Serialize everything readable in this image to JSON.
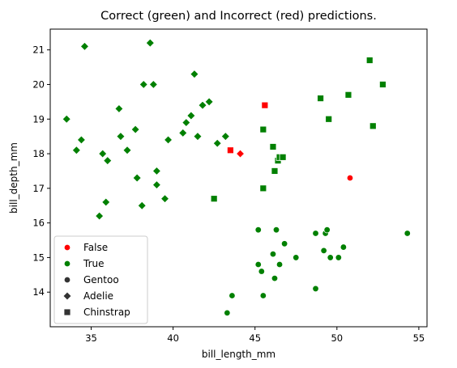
{
  "chart_data": {
    "type": "scatter",
    "title": "Correct (green) and Incorrect (red) predictions.",
    "xlabel": "bill_length_mm",
    "ylabel": "bill_depth_mm",
    "xlim": [
      32.5,
      55.5
    ],
    "ylim": [
      13.0,
      21.6
    ],
    "xticks": [
      35,
      40,
      45,
      50,
      55
    ],
    "yticks": [
      14,
      15,
      16,
      17,
      18,
      19,
      20,
      21
    ],
    "grid": false,
    "legend": {
      "placement": "lower-left",
      "entries": [
        {
          "label": "False",
          "marker": "circle",
          "color": "#ff0000"
        },
        {
          "label": "True",
          "marker": "circle",
          "color": "#008000"
        },
        {
          "label": "Gentoo",
          "marker": "circle",
          "color": "#333333"
        },
        {
          "label": "Adelie",
          "marker": "diamond",
          "color": "#333333"
        },
        {
          "label": "Chinstrap",
          "marker": "square",
          "color": "#333333"
        }
      ]
    },
    "colors": {
      "True": "#008000",
      "False": "#ff0000"
    },
    "points": [
      {
        "x": 34.6,
        "y": 21.1,
        "species": "Adelie",
        "correct": true
      },
      {
        "x": 38.6,
        "y": 21.2,
        "species": "Adelie",
        "correct": true
      },
      {
        "x": 38.2,
        "y": 20.0,
        "species": "Adelie",
        "correct": true
      },
      {
        "x": 38.8,
        "y": 20.0,
        "species": "Adelie",
        "correct": true
      },
      {
        "x": 41.3,
        "y": 20.3,
        "species": "Adelie",
        "correct": true
      },
      {
        "x": 33.5,
        "y": 19.0,
        "species": "Adelie",
        "correct": true
      },
      {
        "x": 34.4,
        "y": 18.4,
        "species": "Adelie",
        "correct": true
      },
      {
        "x": 34.1,
        "y": 18.1,
        "species": "Adelie",
        "correct": true
      },
      {
        "x": 36.7,
        "y": 19.3,
        "species": "Adelie",
        "correct": true
      },
      {
        "x": 36.8,
        "y": 18.5,
        "species": "Adelie",
        "correct": true
      },
      {
        "x": 37.7,
        "y": 18.7,
        "species": "Adelie",
        "correct": true
      },
      {
        "x": 35.7,
        "y": 18.0,
        "species": "Adelie",
        "correct": true
      },
      {
        "x": 36.0,
        "y": 17.8,
        "species": "Adelie",
        "correct": true
      },
      {
        "x": 37.2,
        "y": 18.1,
        "species": "Adelie",
        "correct": true
      },
      {
        "x": 39.7,
        "y": 18.4,
        "species": "Adelie",
        "correct": true
      },
      {
        "x": 41.1,
        "y": 19.1,
        "species": "Adelie",
        "correct": true
      },
      {
        "x": 40.8,
        "y": 18.9,
        "species": "Adelie",
        "correct": true
      },
      {
        "x": 41.8,
        "y": 19.4,
        "species": "Adelie",
        "correct": true
      },
      {
        "x": 42.2,
        "y": 19.5,
        "species": "Adelie",
        "correct": true
      },
      {
        "x": 40.6,
        "y": 18.6,
        "species": "Adelie",
        "correct": true
      },
      {
        "x": 41.5,
        "y": 18.5,
        "species": "Adelie",
        "correct": true
      },
      {
        "x": 42.7,
        "y": 18.3,
        "species": "Adelie",
        "correct": true
      },
      {
        "x": 43.2,
        "y": 18.5,
        "species": "Adelie",
        "correct": true
      },
      {
        "x": 37.8,
        "y": 17.3,
        "species": "Adelie",
        "correct": true
      },
      {
        "x": 39.0,
        "y": 17.5,
        "species": "Adelie",
        "correct": true
      },
      {
        "x": 39.0,
        "y": 17.1,
        "species": "Adelie",
        "correct": true
      },
      {
        "x": 39.5,
        "y": 16.7,
        "species": "Adelie",
        "correct": true
      },
      {
        "x": 35.9,
        "y": 16.6,
        "species": "Adelie",
        "correct": true
      },
      {
        "x": 38.1,
        "y": 16.5,
        "species": "Adelie",
        "correct": true
      },
      {
        "x": 35.5,
        "y": 16.2,
        "species": "Adelie",
        "correct": true
      },
      {
        "x": 44.1,
        "y": 18.0,
        "species": "Adelie",
        "correct": false
      },
      {
        "x": 43.5,
        "y": 18.1,
        "species": "Chinstrap",
        "correct": false
      },
      {
        "x": 45.6,
        "y": 19.4,
        "species": "Chinstrap",
        "correct": false
      },
      {
        "x": 45.5,
        "y": 18.7,
        "species": "Chinstrap",
        "correct": true
      },
      {
        "x": 46.1,
        "y": 18.2,
        "species": "Chinstrap",
        "correct": true
      },
      {
        "x": 46.4,
        "y": 17.8,
        "species": "Chinstrap",
        "correct": true
      },
      {
        "x": 46.5,
        "y": 17.9,
        "species": "Chinstrap",
        "correct": true
      },
      {
        "x": 46.7,
        "y": 17.9,
        "species": "Chinstrap",
        "correct": true
      },
      {
        "x": 46.2,
        "y": 17.5,
        "species": "Chinstrap",
        "correct": true
      },
      {
        "x": 45.5,
        "y": 17.0,
        "species": "Chinstrap",
        "correct": true
      },
      {
        "x": 42.5,
        "y": 16.7,
        "species": "Chinstrap",
        "correct": true
      },
      {
        "x": 49.0,
        "y": 19.6,
        "species": "Chinstrap",
        "correct": true
      },
      {
        "x": 49.5,
        "y": 19.0,
        "species": "Chinstrap",
        "correct": true
      },
      {
        "x": 50.7,
        "y": 19.7,
        "species": "Chinstrap",
        "correct": true
      },
      {
        "x": 52.0,
        "y": 20.7,
        "species": "Chinstrap",
        "correct": true
      },
      {
        "x": 52.8,
        "y": 20.0,
        "species": "Chinstrap",
        "correct": true
      },
      {
        "x": 52.2,
        "y": 18.8,
        "species": "Chinstrap",
        "correct": true
      },
      {
        "x": 50.8,
        "y": 17.3,
        "species": "Gentoo",
        "correct": false
      },
      {
        "x": 45.2,
        "y": 15.8,
        "species": "Gentoo",
        "correct": true
      },
      {
        "x": 46.3,
        "y": 15.8,
        "species": "Gentoo",
        "correct": true
      },
      {
        "x": 46.1,
        "y": 15.1,
        "species": "Gentoo",
        "correct": true
      },
      {
        "x": 46.8,
        "y": 15.4,
        "species": "Gentoo",
        "correct": true
      },
      {
        "x": 47.5,
        "y": 15.0,
        "species": "Gentoo",
        "correct": true
      },
      {
        "x": 45.2,
        "y": 14.8,
        "species": "Gentoo",
        "correct": true
      },
      {
        "x": 45.4,
        "y": 14.6,
        "species": "Gentoo",
        "correct": true
      },
      {
        "x": 46.5,
        "y": 14.8,
        "species": "Gentoo",
        "correct": true
      },
      {
        "x": 46.2,
        "y": 14.4,
        "species": "Gentoo",
        "correct": true
      },
      {
        "x": 48.7,
        "y": 15.7,
        "species": "Gentoo",
        "correct": true
      },
      {
        "x": 49.3,
        "y": 15.7,
        "species": "Gentoo",
        "correct": true
      },
      {
        "x": 49.4,
        "y": 15.8,
        "species": "Gentoo",
        "correct": true
      },
      {
        "x": 49.2,
        "y": 15.2,
        "species": "Gentoo",
        "correct": true
      },
      {
        "x": 49.6,
        "y": 15.0,
        "species": "Gentoo",
        "correct": true
      },
      {
        "x": 50.1,
        "y": 15.0,
        "species": "Gentoo",
        "correct": true
      },
      {
        "x": 50.4,
        "y": 15.3,
        "species": "Gentoo",
        "correct": true
      },
      {
        "x": 54.3,
        "y": 15.7,
        "species": "Gentoo",
        "correct": true
      },
      {
        "x": 48.7,
        "y": 14.1,
        "species": "Gentoo",
        "correct": true
      },
      {
        "x": 43.6,
        "y": 13.9,
        "species": "Gentoo",
        "correct": true
      },
      {
        "x": 45.5,
        "y": 13.9,
        "species": "Gentoo",
        "correct": true
      },
      {
        "x": 43.3,
        "y": 13.4,
        "species": "Gentoo",
        "correct": true
      }
    ]
  }
}
